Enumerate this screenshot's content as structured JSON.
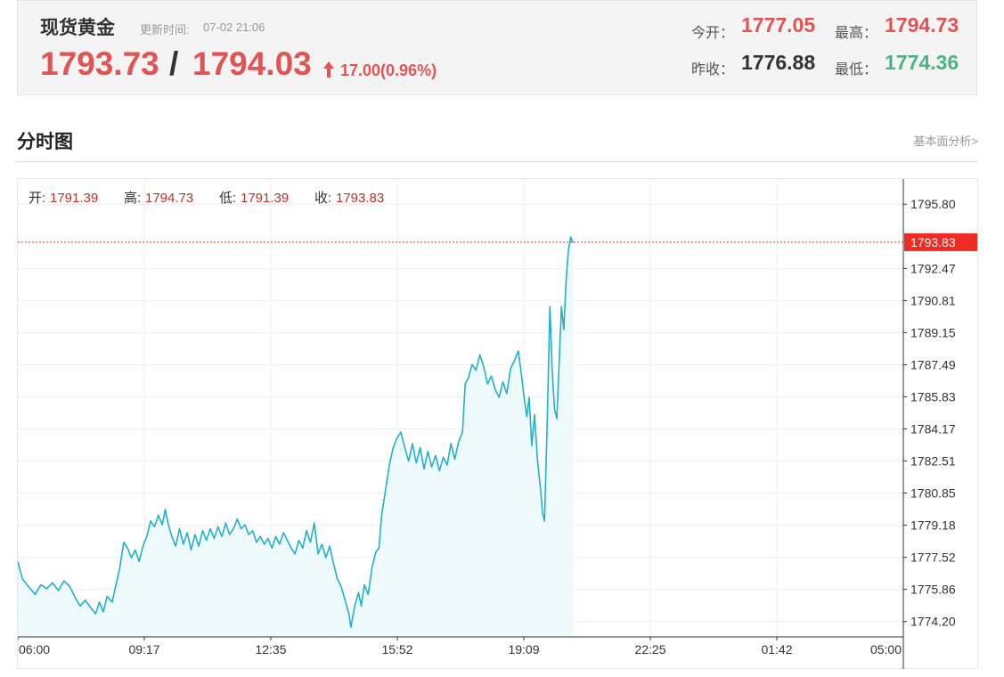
{
  "quote": {
    "name": "现货黄金",
    "update_label": "更新时间:",
    "update_time": "07-02 21:06",
    "bid": "1793.73",
    "slash": "/",
    "ask": "1794.03",
    "change": "17.00(0.96%)",
    "open_label": "今开：",
    "open_value": "1777.05",
    "high_label": "最高：",
    "high_value": "1794.73",
    "prev_close_label": "昨收：",
    "prev_close_value": "1776.88",
    "low_label": "最低：",
    "low_value": "1774.36",
    "icons": {
      "change": "up-arrow-icon"
    }
  },
  "section": {
    "title": "分时图",
    "link": "基本面分析>"
  },
  "colors": {
    "up": "#e05454",
    "down": "#4cb385",
    "line": "#22b1c9",
    "area": "#eef9fc",
    "current_marker": "#ee2b24",
    "grid": "#eeeeee"
  },
  "chart_data": {
    "type": "area",
    "ohlc_labels": [
      {
        "label": "开:",
        "value": "1791.39"
      },
      {
        "label": "高:",
        "value": "1794.73"
      },
      {
        "label": "低:",
        "value": "1791.39"
      },
      {
        "label": "收:",
        "value": "1793.83"
      }
    ],
    "x_ticks": [
      "06:00",
      "09:17",
      "12:35",
      "15:52",
      "19:09",
      "22:25",
      "01:42",
      "05:00"
    ],
    "y_ticks": [
      "1795.80",
      "1792.47",
      "1790.81",
      "1789.15",
      "1787.49",
      "1785.83",
      "1784.17",
      "1782.51",
      "1780.85",
      "1779.18",
      "1777.52",
      "1775.86",
      "1774.20"
    ],
    "ylim": [
      1773.4,
      1797.1
    ],
    "xlim_hours": [
      0,
      23
    ],
    "current_price": "1793.83",
    "series": [
      {
        "values": [
          [
            0.0,
            1777.3
          ],
          [
            0.12,
            1776.4
          ],
          [
            0.28,
            1776.0
          ],
          [
            0.45,
            1775.6
          ],
          [
            0.6,
            1776.1
          ],
          [
            0.75,
            1775.9
          ],
          [
            0.9,
            1776.2
          ],
          [
            1.05,
            1775.8
          ],
          [
            1.2,
            1776.3
          ],
          [
            1.35,
            1776.0
          ],
          [
            1.5,
            1775.4
          ],
          [
            1.62,
            1775.0
          ],
          [
            1.75,
            1775.3
          ],
          [
            1.9,
            1774.9
          ],
          [
            2.02,
            1774.6
          ],
          [
            2.12,
            1775.2
          ],
          [
            2.22,
            1774.7
          ],
          [
            2.32,
            1775.5
          ],
          [
            2.45,
            1775.2
          ],
          [
            2.55,
            1776.1
          ],
          [
            2.65,
            1777.0
          ],
          [
            2.75,
            1778.3
          ],
          [
            2.85,
            1778.0
          ],
          [
            2.95,
            1777.5
          ],
          [
            3.05,
            1777.9
          ],
          [
            3.15,
            1777.3
          ],
          [
            3.25,
            1778.1
          ],
          [
            3.35,
            1778.6
          ],
          [
            3.45,
            1779.4
          ],
          [
            3.55,
            1779.1
          ],
          [
            3.65,
            1779.7
          ],
          [
            3.75,
            1779.2
          ],
          [
            3.83,
            1780.0
          ],
          [
            3.9,
            1779.3
          ],
          [
            4.0,
            1778.6
          ],
          [
            4.1,
            1778.1
          ],
          [
            4.2,
            1779.0
          ],
          [
            4.3,
            1778.2
          ],
          [
            4.4,
            1778.8
          ],
          [
            4.5,
            1777.9
          ],
          [
            4.6,
            1778.7
          ],
          [
            4.7,
            1778.1
          ],
          [
            4.8,
            1778.9
          ],
          [
            4.9,
            1778.4
          ],
          [
            5.0,
            1779.0
          ],
          [
            5.1,
            1778.5
          ],
          [
            5.2,
            1779.1
          ],
          [
            5.3,
            1778.6
          ],
          [
            5.4,
            1779.3
          ],
          [
            5.5,
            1778.7
          ],
          [
            5.6,
            1779.0
          ],
          [
            5.7,
            1779.5
          ],
          [
            5.8,
            1779.0
          ],
          [
            5.9,
            1779.2
          ],
          [
            6.0,
            1778.7
          ],
          [
            6.1,
            1778.9
          ],
          [
            6.2,
            1778.3
          ],
          [
            6.3,
            1778.6
          ],
          [
            6.4,
            1778.2
          ],
          [
            6.5,
            1778.5
          ],
          [
            6.6,
            1778.0
          ],
          [
            6.7,
            1778.6
          ],
          [
            6.8,
            1778.2
          ],
          [
            6.9,
            1778.8
          ],
          [
            7.0,
            1778.4
          ],
          [
            7.1,
            1778.0
          ],
          [
            7.2,
            1777.7
          ],
          [
            7.3,
            1778.4
          ],
          [
            7.4,
            1778.0
          ],
          [
            7.5,
            1778.9
          ],
          [
            7.6,
            1778.3
          ],
          [
            7.7,
            1779.3
          ],
          [
            7.8,
            1777.7
          ],
          [
            7.9,
            1778.2
          ],
          [
            8.0,
            1777.5
          ],
          [
            8.1,
            1778.1
          ],
          [
            8.2,
            1777.2
          ],
          [
            8.3,
            1776.4
          ],
          [
            8.4,
            1776.0
          ],
          [
            8.5,
            1775.3
          ],
          [
            8.6,
            1774.6
          ],
          [
            8.65,
            1773.9
          ],
          [
            8.75,
            1775.0
          ],
          [
            8.85,
            1775.7
          ],
          [
            8.92,
            1775.0
          ],
          [
            9.0,
            1776.1
          ],
          [
            9.1,
            1775.6
          ],
          [
            9.2,
            1777.0
          ],
          [
            9.3,
            1777.8
          ],
          [
            9.38,
            1778.0
          ],
          [
            9.45,
            1779.7
          ],
          [
            9.55,
            1781.0
          ],
          [
            9.65,
            1782.3
          ],
          [
            9.75,
            1783.2
          ],
          [
            9.85,
            1783.7
          ],
          [
            9.95,
            1784.0
          ],
          [
            10.05,
            1783.2
          ],
          [
            10.15,
            1782.5
          ],
          [
            10.25,
            1783.4
          ],
          [
            10.35,
            1782.4
          ],
          [
            10.45,
            1783.2
          ],
          [
            10.55,
            1782.1
          ],
          [
            10.65,
            1783.0
          ],
          [
            10.75,
            1782.2
          ],
          [
            10.85,
            1782.8
          ],
          [
            10.95,
            1782.0
          ],
          [
            11.05,
            1782.7
          ],
          [
            11.15,
            1782.3
          ],
          [
            11.25,
            1783.4
          ],
          [
            11.35,
            1782.6
          ],
          [
            11.45,
            1783.5
          ],
          [
            11.55,
            1784.0
          ],
          [
            11.62,
            1786.5
          ],
          [
            11.7,
            1786.8
          ],
          [
            11.8,
            1787.5
          ],
          [
            11.9,
            1787.2
          ],
          [
            12.0,
            1788.0
          ],
          [
            12.1,
            1787.4
          ],
          [
            12.2,
            1786.5
          ],
          [
            12.3,
            1786.9
          ],
          [
            12.4,
            1786.2
          ],
          [
            12.5,
            1785.8
          ],
          [
            12.6,
            1786.6
          ],
          [
            12.7,
            1786.0
          ],
          [
            12.8,
            1787.3
          ],
          [
            12.9,
            1787.7
          ],
          [
            13.0,
            1788.2
          ],
          [
            13.08,
            1787.0
          ],
          [
            13.15,
            1785.8
          ],
          [
            13.22,
            1784.8
          ],
          [
            13.28,
            1785.8
          ],
          [
            13.35,
            1783.3
          ],
          [
            13.42,
            1784.9
          ],
          [
            13.5,
            1782.5
          ],
          [
            13.58,
            1781.0
          ],
          [
            13.63,
            1779.8
          ],
          [
            13.68,
            1779.4
          ],
          [
            13.75,
            1784.5
          ],
          [
            13.82,
            1790.5
          ],
          [
            13.88,
            1787.2
          ],
          [
            13.94,
            1785.2
          ],
          [
            14.0,
            1784.7
          ],
          [
            14.06,
            1787.6
          ],
          [
            14.12,
            1790.5
          ],
          [
            14.18,
            1789.3
          ],
          [
            14.24,
            1791.8
          ],
          [
            14.3,
            1793.4
          ],
          [
            14.36,
            1794.1
          ],
          [
            14.42,
            1793.8
          ]
        ]
      }
    ]
  }
}
